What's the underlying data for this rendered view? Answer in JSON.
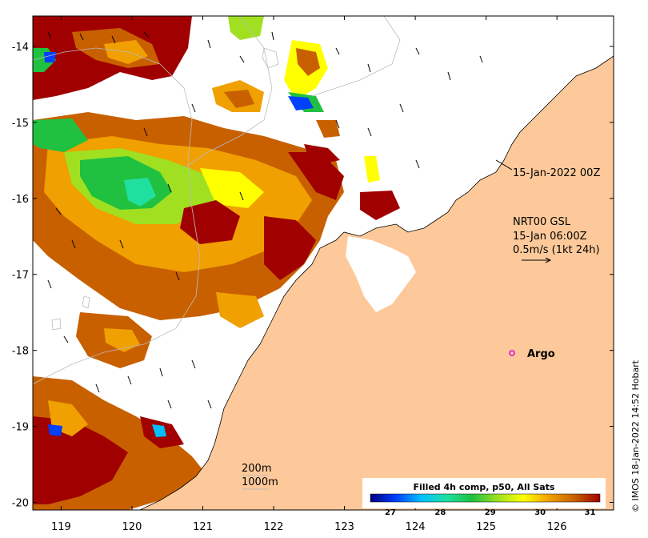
{
  "chart_data": {
    "type": "map",
    "title": "Filled 4h comp, p50, All Sats",
    "x_axis": {
      "ticks": [
        "119",
        "120",
        "121",
        "122",
        "123",
        "124",
        "125",
        "126"
      ],
      "lon_range": [
        118.6,
        126.8
      ]
    },
    "y_axis": {
      "ticks": [
        "-14",
        "-15",
        "-16",
        "-17",
        "-18",
        "-19",
        "-20"
      ],
      "lat_range": [
        -20.1,
        -13.6
      ]
    },
    "colorbar": {
      "title": "Filled 4h comp, p50, All Sats",
      "ticks": [
        "27",
        "28",
        "29",
        "30",
        "31"
      ],
      "range": [
        26.6,
        31.2
      ],
      "colors": [
        "#000080",
        "#0040ff",
        "#00c0ff",
        "#20e0a0",
        "#20c040",
        "#a0e020",
        "#ffff00",
        "#f0a000",
        "#c86000",
        "#a00000"
      ]
    },
    "annotations": {
      "date_label": "15-Jan-2022 00Z",
      "product": "NRT00 GSL",
      "time": "15-Jan 06:00Z",
      "vector_scale": "0.5m/s (1kt 24h)",
      "argo_label": "Argo",
      "depth_200": "200m",
      "depth_1000": "1000m"
    },
    "argo_float": {
      "lon": 125.25,
      "lat": -18.0
    },
    "credit": "© IMOS 18-Jan-2022 14:52 Hobart",
    "colors": {
      "land": "#fdc99a",
      "missing": "#ffffff",
      "argo": "#e000e0",
      "high_sst": "#a00000"
    }
  }
}
